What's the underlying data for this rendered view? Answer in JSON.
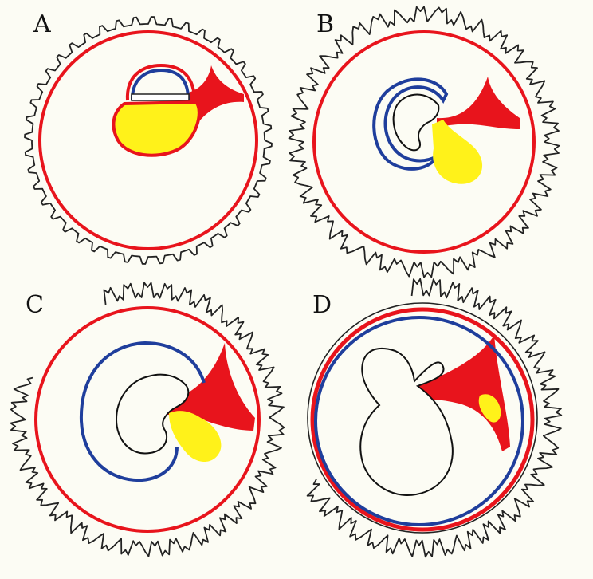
{
  "panels": [
    {
      "label": "A"
    },
    {
      "label": "B"
    },
    {
      "label": "C"
    },
    {
      "label": "D"
    }
  ],
  "colors": {
    "background": "#fcfcf4",
    "chorion_outline": "#222222",
    "red_membrane": "#e8141c",
    "amnion_blue": "#1f3e9c",
    "yolk_sac": "#fff21a",
    "embryo_line": "#111111"
  }
}
